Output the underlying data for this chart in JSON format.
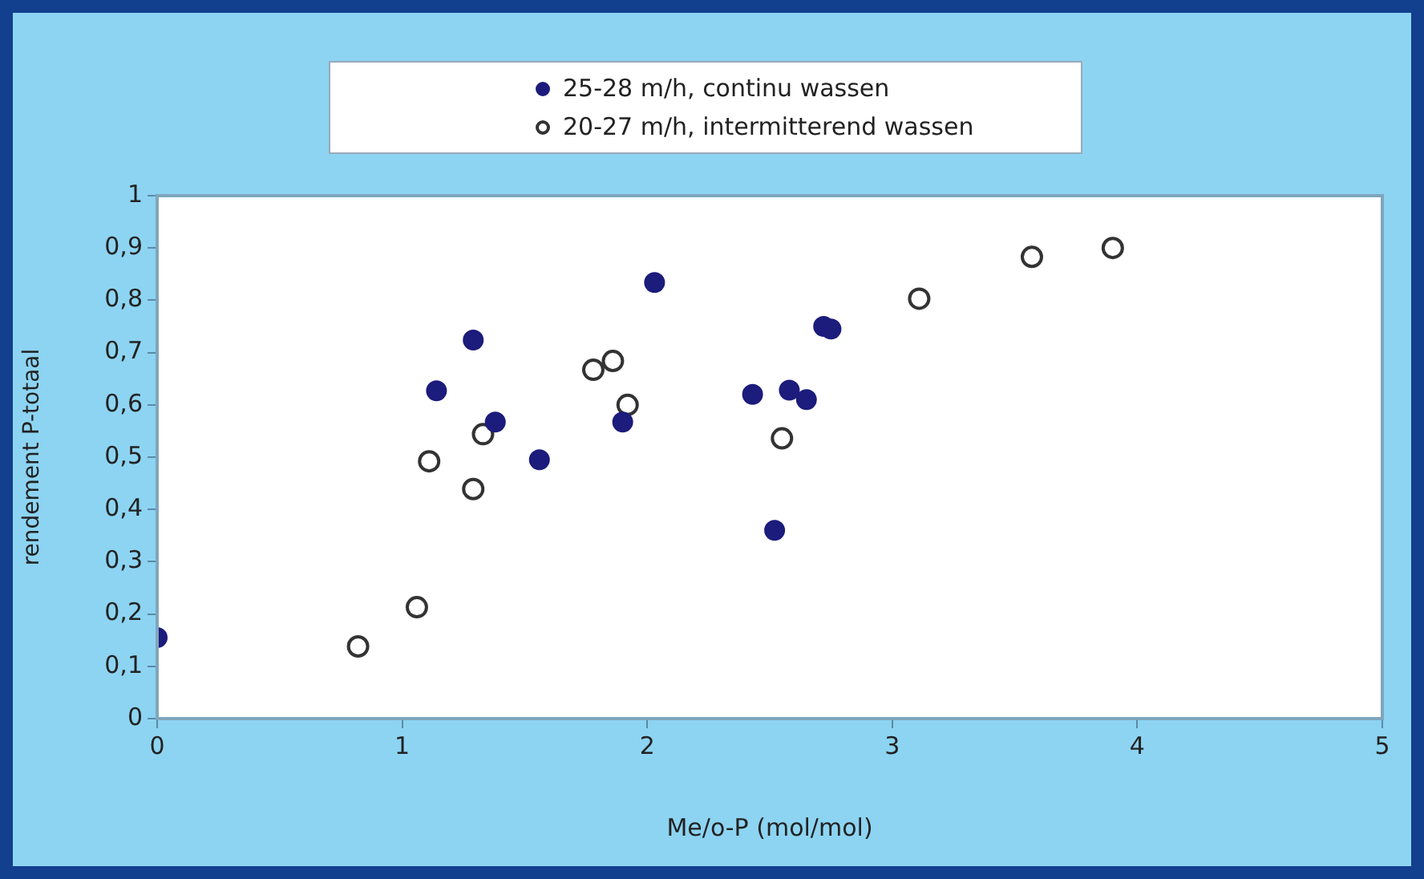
{
  "chart_data": {
    "type": "scatter",
    "xlabel": "Me/o-P (mol/mol)",
    "ylabel": "rendement P-totaal",
    "xlim": [
      0,
      5
    ],
    "xticks": [
      0,
      1,
      2,
      3,
      4,
      5
    ],
    "ylim": [
      0,
      1
    ],
    "yticks": [
      0,
      {
        "value": 0.1,
        "label": "0,1"
      },
      {
        "value": 0.2,
        "label": "0,2"
      },
      {
        "value": 0.3,
        "label": "0,3"
      },
      {
        "value": 0.4,
        "label": "0,4"
      },
      {
        "value": 0.5,
        "label": "0,5"
      },
      {
        "value": 0.6,
        "label": "0,6"
      },
      {
        "value": 0.7,
        "label": "0,7"
      },
      {
        "value": 0.8,
        "label": "0,8"
      },
      {
        "value": 0.9,
        "label": "0,9"
      },
      1
    ],
    "grid": false,
    "legend": "top",
    "marker": "circle",
    "series": [
      {
        "name": "25-28 m/h, continu wassen",
        "color": "#1c1c7c",
        "x": [
          0,
          1.14,
          1.29,
          1.38,
          1.56,
          1.9,
          2.03,
          2.43,
          2.58,
          2.65,
          2.72,
          2.75,
          2.52
        ],
        "values": [
          0.155,
          0.627,
          0.724,
          0.567,
          0.495,
          0.567,
          0.834,
          0.62,
          0.628,
          0.61,
          0.75,
          0.745,
          0.36
        ]
      },
      {
        "name": "20-27 m/h, intermitterend wassen",
        "color": "#ffffff",
        "x": [
          0.82,
          1.06,
          1.11,
          1.29,
          1.33,
          1.78,
          1.86,
          1.92,
          2.55,
          3.11,
          3.57,
          3.9
        ],
        "values": [
          0.138,
          0.213,
          0.492,
          0.439,
          0.544,
          0.667,
          0.684,
          0.6,
          0.536,
          0.803,
          0.883,
          0.9
        ]
      }
    ]
  }
}
